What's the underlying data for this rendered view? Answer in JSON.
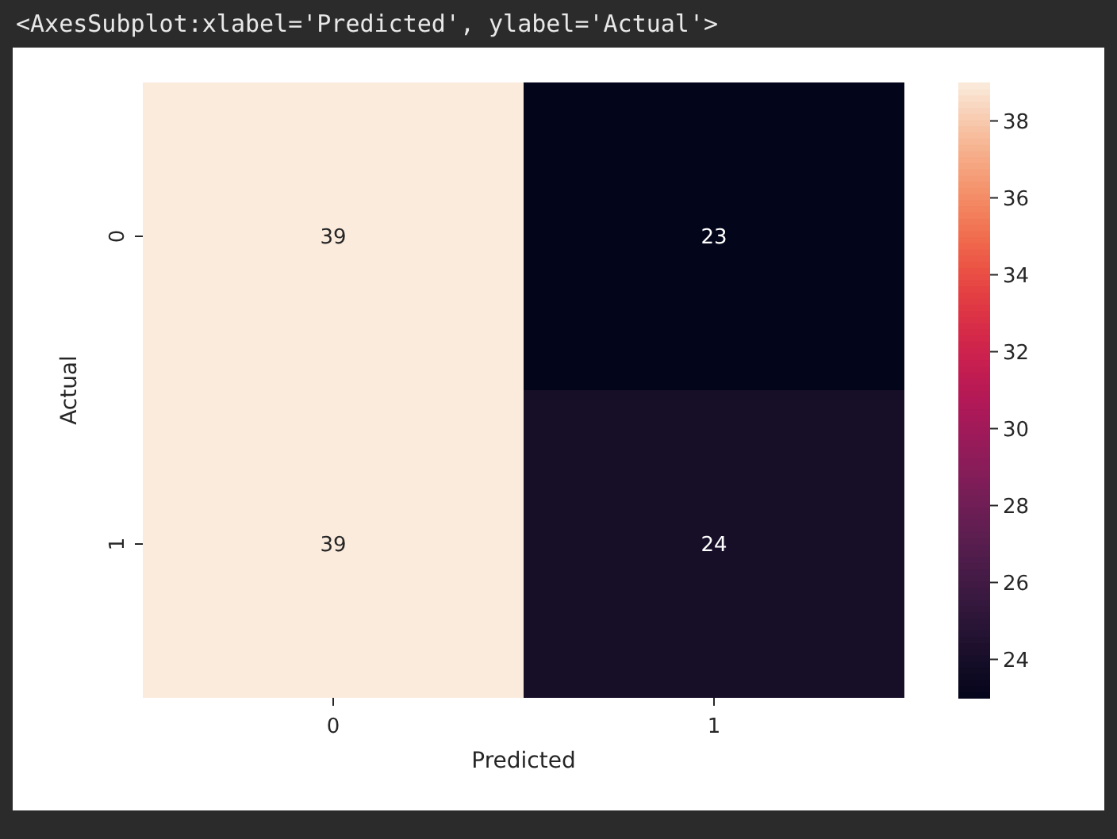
{
  "chart_data": {
    "type": "heatmap",
    "xlabel": "Predicted",
    "ylabel": "Actual",
    "annotations": [
      "<AxesSubplot:xlabel='Predicted', ylabel='Actual'>"
    ],
    "categories": [
      "0",
      "1"
    ],
    "y_categories": [
      "0",
      "1"
    ],
    "cells": [
      [
        39,
        23
      ],
      [
        39,
        24
      ]
    ],
    "data_labels": true,
    "clim": [
      23,
      39
    ],
    "cticks": [
      24,
      26,
      28,
      30,
      32,
      34,
      36,
      38
    ]
  }
}
